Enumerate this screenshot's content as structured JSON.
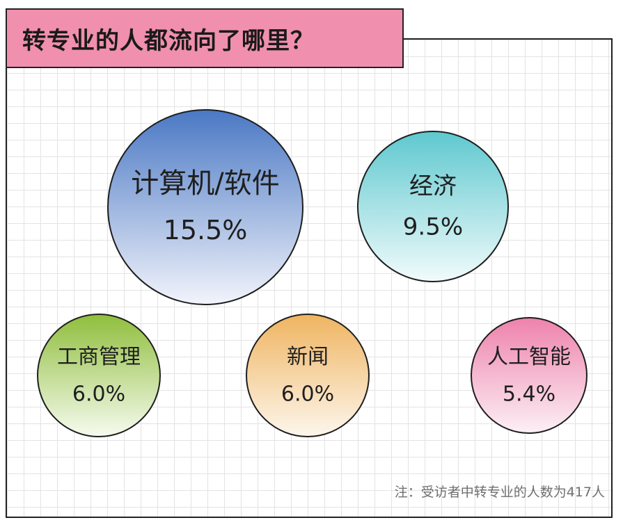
{
  "title": "转专业的人都流向了哪里？",
  "note": "注：受访者中转专业的人数为417人",
  "chart_data": {
    "type": "bubble",
    "title": "转专业的人都流向了哪里？",
    "unit": "%",
    "bubbles": [
      {
        "label": "计算机/软件",
        "value": 15.5,
        "value_text": "15.5%",
        "color_top": "#4a78c4",
        "color_bottom": "#f2f4fb"
      },
      {
        "label": "经济",
        "value": 9.5,
        "value_text": "9.5%",
        "color_top": "#5ec8cf",
        "color_bottom": "#f1fbfb"
      },
      {
        "label": "工商管理",
        "value": 6.0,
        "value_text": "6.0%",
        "color_top": "#8fbe3c",
        "color_bottom": "#f6fbef"
      },
      {
        "label": "新闻",
        "value": 6.0,
        "value_text": "6.0%",
        "color_top": "#efb460",
        "color_bottom": "#fdf6ec"
      },
      {
        "label": "人工智能",
        "value": 5.4,
        "value_text": "5.4%",
        "color_top": "#ee82ac",
        "color_bottom": "#fcf0f5"
      }
    ]
  }
}
